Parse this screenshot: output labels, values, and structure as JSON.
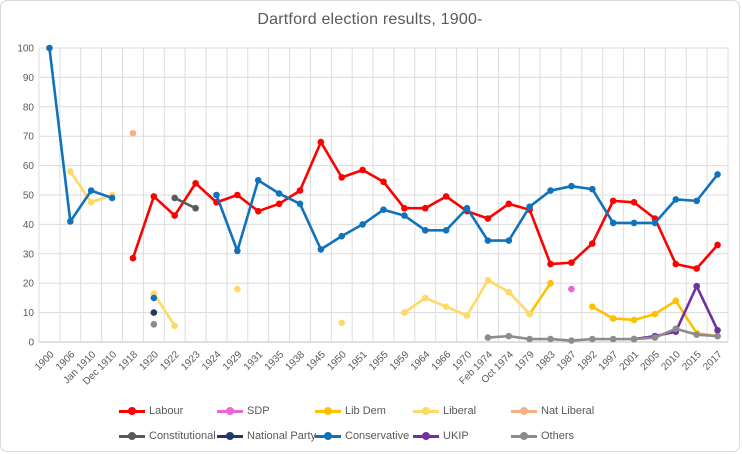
{
  "chart_data": {
    "type": "line",
    "title": "Dartford election results, 1900-",
    "xlabel": "",
    "ylabel": "",
    "ylim": [
      0,
      100
    ],
    "ytick_step": 10,
    "grid": true,
    "legend_position": "bottom",
    "axis_colors": {
      "grid": "#dcdcdc",
      "axis": "#bfbfbf",
      "text": "#595959"
    },
    "categories": [
      "1900",
      "1906",
      "Jan 1910",
      "Dec 1910",
      "1918",
      "1920",
      "1922",
      "1923",
      "1924",
      "1929",
      "1931",
      "1935",
      "1938",
      "1945",
      "1950",
      "1951",
      "1955",
      "1959",
      "1964",
      "1966",
      "1970",
      "Feb 1974",
      "Oct 1974",
      "1979",
      "1983",
      "1987",
      "1992",
      "1997",
      "2001",
      "2005",
      "2010",
      "2015",
      "2017"
    ],
    "series": [
      {
        "name": "Labour",
        "color": "#ff0000",
        "values": [
          null,
          null,
          null,
          null,
          28.5,
          49.5,
          43,
          54,
          47.5,
          50,
          44.5,
          47,
          51.5,
          68,
          56,
          58.5,
          54.5,
          45.5,
          45.5,
          49.5,
          44.5,
          42,
          47,
          45,
          26.5,
          27,
          33.5,
          48,
          47.5,
          42,
          26.5,
          25,
          33
        ]
      },
      {
        "name": "SDP",
        "color": "#e866d6",
        "values": [
          null,
          null,
          null,
          null,
          null,
          null,
          null,
          null,
          null,
          null,
          null,
          null,
          null,
          null,
          null,
          null,
          null,
          null,
          null,
          null,
          null,
          null,
          null,
          null,
          null,
          18,
          null,
          null,
          null,
          null,
          null,
          null,
          null
        ]
      },
      {
        "name": "Lib Dem",
        "color": "#ffc000",
        "values": [
          null,
          null,
          null,
          null,
          null,
          null,
          null,
          null,
          null,
          null,
          null,
          null,
          null,
          null,
          null,
          null,
          null,
          null,
          null,
          null,
          null,
          null,
          null,
          9.5,
          20,
          null,
          12,
          8,
          7.5,
          9.5,
          14,
          3,
          2
        ]
      },
      {
        "name": "Liberal",
        "color": "#ffd966",
        "values": [
          null,
          58,
          47.5,
          50,
          null,
          16.5,
          5.5,
          null,
          null,
          18,
          null,
          null,
          null,
          null,
          6.5,
          null,
          null,
          10,
          15,
          12,
          9,
          21,
          17,
          9.5,
          null,
          null,
          null,
          null,
          null,
          null,
          null,
          null,
          null
        ]
      },
      {
        "name": "Nat Liberal",
        "color": "#f4b183",
        "values": [
          null,
          null,
          null,
          null,
          71,
          null,
          null,
          null,
          null,
          null,
          null,
          null,
          null,
          null,
          null,
          null,
          null,
          null,
          null,
          null,
          null,
          null,
          null,
          null,
          null,
          null,
          null,
          null,
          null,
          null,
          null,
          null,
          null
        ]
      },
      {
        "name": "Constitutional",
        "color": "#595959",
        "values": [
          null,
          null,
          null,
          null,
          null,
          null,
          49,
          45.5,
          null,
          null,
          null,
          null,
          null,
          null,
          null,
          null,
          null,
          null,
          null,
          null,
          null,
          null,
          null,
          null,
          null,
          null,
          null,
          null,
          null,
          null,
          null,
          null,
          null
        ]
      },
      {
        "name": "National Party",
        "color": "#1f3864",
        "values": [
          null,
          null,
          null,
          null,
          null,
          10,
          null,
          null,
          null,
          null,
          null,
          null,
          null,
          null,
          null,
          null,
          null,
          null,
          null,
          null,
          null,
          null,
          null,
          null,
          null,
          null,
          null,
          null,
          null,
          null,
          null,
          null,
          null
        ]
      },
      {
        "name": "Conservative",
        "color": "#1072bc",
        "values": [
          100,
          41,
          51.5,
          49,
          null,
          15,
          null,
          null,
          50,
          31,
          55,
          50.5,
          47,
          31.5,
          36,
          40,
          45,
          43,
          38,
          38,
          45.5,
          34.5,
          34.5,
          46,
          51.5,
          53,
          52,
          40.5,
          40.5,
          40.5,
          48.5,
          48,
          57
        ]
      },
      {
        "name": "UKIP",
        "color": "#7030a0",
        "values": [
          null,
          null,
          null,
          null,
          null,
          null,
          null,
          null,
          null,
          null,
          null,
          null,
          null,
          null,
          null,
          null,
          null,
          null,
          null,
          null,
          null,
          null,
          null,
          null,
          null,
          null,
          null,
          null,
          1,
          2,
          3.5,
          19,
          4
        ]
      },
      {
        "name": "Others",
        "color": "#8c8c8c",
        "values": [
          null,
          null,
          null,
          null,
          null,
          6,
          null,
          null,
          null,
          null,
          null,
          null,
          null,
          null,
          null,
          null,
          null,
          null,
          null,
          null,
          null,
          1.5,
          2,
          1,
          1,
          0.5,
          1,
          1,
          1,
          1.5,
          4.5,
          2.5,
          2
        ]
      }
    ],
    "legend_rows": [
      [
        "Labour",
        "SDP",
        "Lib Dem",
        "Liberal",
        "Nat Liberal"
      ],
      [
        "Constitutional",
        "National Party",
        "Conservative",
        "UKIP",
        "Others"
      ]
    ]
  }
}
